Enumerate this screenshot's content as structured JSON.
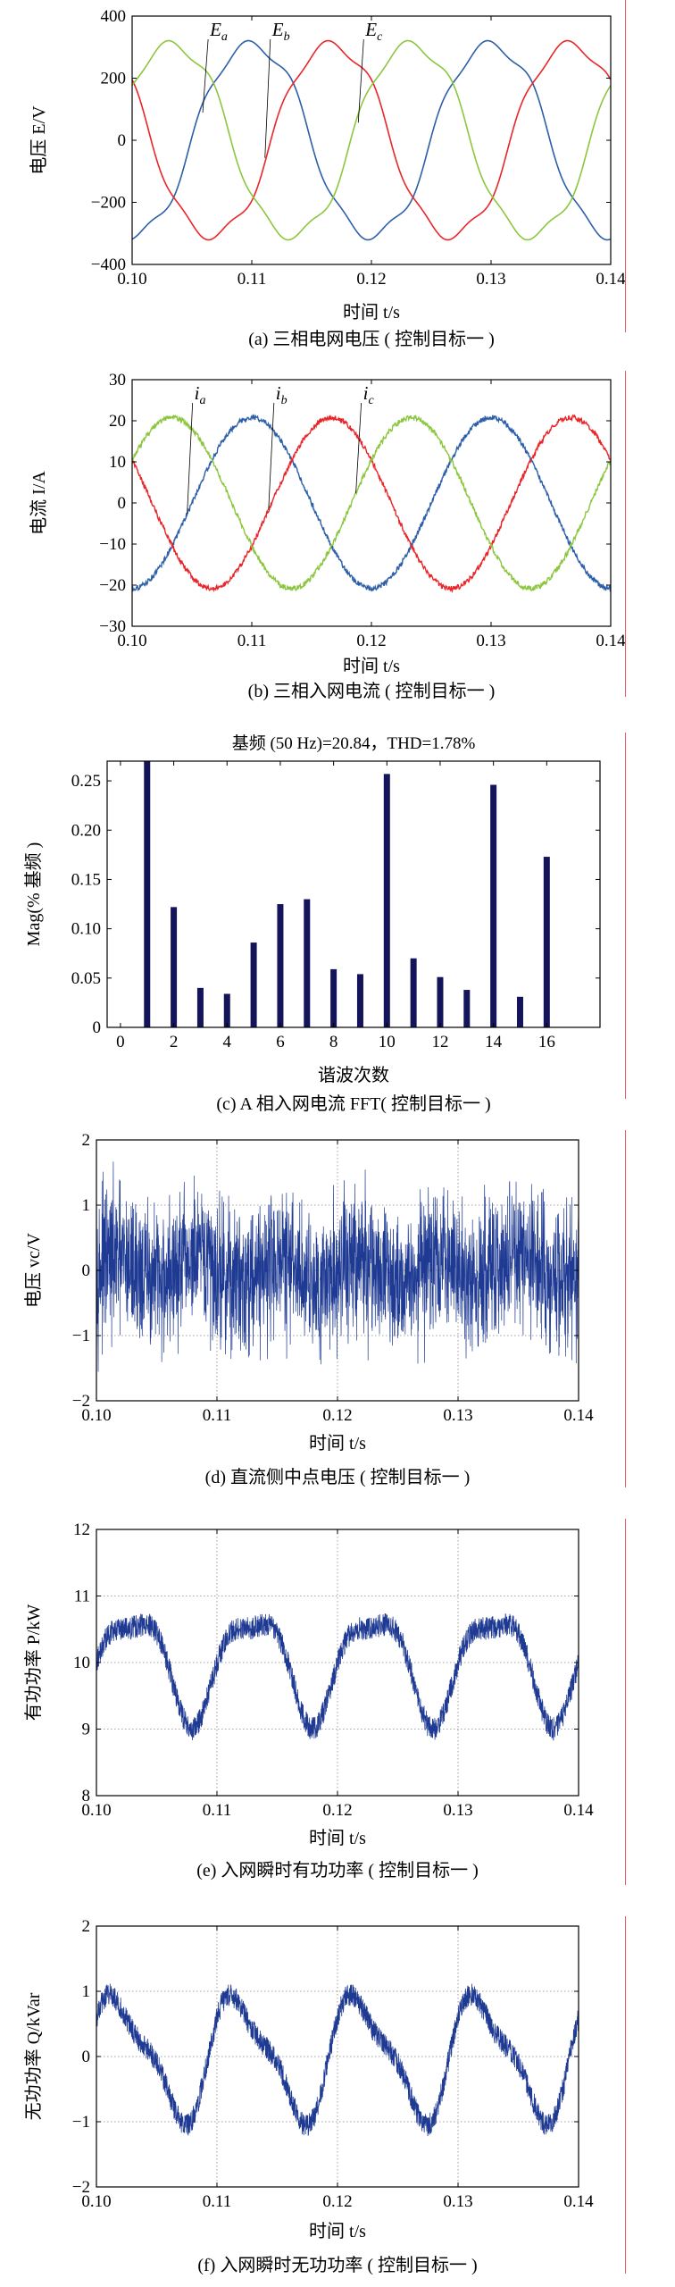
{
  "colors": {
    "red": "#e8262a",
    "blue": "#2c5fa8",
    "green": "#8cc63f",
    "dark_blue": "#1f3a93",
    "navy": "#14145a",
    "margin_line": "#e06060"
  },
  "chart_data": [
    {
      "id": "a",
      "type": "line",
      "caption": "(a) 三相电网电压 ( 控制目标一 )",
      "xlabel": "时间 t/s",
      "ylabel": "电压 E/V",
      "xlim": [
        0.1,
        0.14
      ],
      "ylim": [
        -400,
        400
      ],
      "xticks": [
        "0.10",
        "0.11",
        "0.12",
        "0.13",
        "0.14"
      ],
      "yticks": [
        "400",
        "200",
        "0",
        "−200",
        "−400"
      ],
      "grid": false,
      "amplitude": 320,
      "frequency_hz": 50,
      "series": [
        {
          "name": "Ea",
          "color": "#2c5fa8",
          "phase_deg": -90,
          "label_x": 0.1065
        },
        {
          "name": "Eb",
          "color": "#e8262a",
          "phase_deg": 150,
          "label_x": 0.1117
        },
        {
          "name": "Ec",
          "color": "#8cc63f",
          "phase_deg": 30,
          "label_x": 0.1195
        }
      ]
    },
    {
      "id": "b",
      "type": "line",
      "caption": "(b) 三相入网电流 ( 控制目标一 )",
      "xlabel": "时间 t/s",
      "ylabel": "电流 I/A",
      "xlim": [
        0.1,
        0.14
      ],
      "ylim": [
        -30,
        30
      ],
      "xticks": [
        "0.10",
        "0.11",
        "0.12",
        "0.13",
        "0.14"
      ],
      "yticks": [
        "30",
        "20",
        "10",
        "0",
        "−10",
        "−20",
        "−30"
      ],
      "grid": false,
      "amplitude": 20.8,
      "frequency_hz": 50,
      "series": [
        {
          "name": "ia",
          "color": "#2c5fa8",
          "phase_deg": -90,
          "label_x": 0.1052
        },
        {
          "name": "ib",
          "color": "#e8262a",
          "phase_deg": 150,
          "label_x": 0.112
        },
        {
          "name": "ic",
          "color": "#8cc63f",
          "phase_deg": 30,
          "label_x": 0.1193
        }
      ]
    },
    {
      "id": "c",
      "type": "bar",
      "title": "基频 (50 Hz)=20.84，THD=1.78%",
      "caption": "(c) A 相入网电流 FFT( 控制目标一 )",
      "xlabel": "谐波次数",
      "ylabel": "Mag(% 基频 )",
      "xlim": [
        -0.5,
        18
      ],
      "ylim": [
        0,
        0.27
      ],
      "xticks": [
        "0",
        "2",
        "4",
        "6",
        "8",
        "10",
        "12",
        "14",
        "16"
      ],
      "yticks": [
        "0.25",
        "0.20",
        "0.15",
        "0.10",
        "0.05",
        "0"
      ],
      "color": "#14145a",
      "categories": [
        0,
        1,
        2,
        3,
        4,
        5,
        6,
        7,
        8,
        9,
        10,
        11,
        12,
        13,
        14,
        15,
        16
      ],
      "values": [
        0,
        0.275,
        0.122,
        0.04,
        0.034,
        0.086,
        0.125,
        0.13,
        0.059,
        0.054,
        0.257,
        0.07,
        0.051,
        0.038,
        0.246,
        0.031,
        0.173
      ]
    },
    {
      "id": "d",
      "type": "line",
      "caption": "(d) 直流侧中点电压 ( 控制目标一 )",
      "xlabel": "时间 t/s",
      "ylabel": "电压 vc/V",
      "xlim": [
        0.1,
        0.14
      ],
      "ylim": [
        -2,
        2
      ],
      "xticks": [
        "0.10",
        "0.11",
        "0.12",
        "0.13",
        "0.14"
      ],
      "yticks": [
        "2",
        "1",
        "0",
        "−1",
        "−2"
      ],
      "grid": true,
      "color": "#1f3a93",
      "noise_amplitude": 1.2
    },
    {
      "id": "e",
      "type": "line",
      "caption": "(e) 入网瞬时有功功率 ( 控制目标一 )",
      "xlabel": "时间 t/s",
      "ylabel": "有功功率 P/kW",
      "xlim": [
        0.1,
        0.14
      ],
      "ylim": [
        8,
        12
      ],
      "xticks": [
        "0.10",
        "0.11",
        "0.12",
        "0.13",
        "0.14"
      ],
      "yticks": [
        "12",
        "11",
        "10",
        "9",
        "8"
      ],
      "grid": true,
      "color": "#1f3a93",
      "mean": 10.0,
      "ripple_frequency_hz": 100,
      "ripple_amplitude": 0.95
    },
    {
      "id": "f",
      "type": "line",
      "caption": "(f) 入网瞬时无功功率 ( 控制目标一 )",
      "xlabel": "时间 t/s",
      "ylabel": "无功功率 Q/kVar",
      "xlim": [
        0.1,
        0.14
      ],
      "ylim": [
        -2,
        2
      ],
      "xticks": [
        "0.10",
        "0.11",
        "0.12",
        "0.13",
        "0.14"
      ],
      "yticks": [
        "2",
        "1",
        "0",
        "−1",
        "−2"
      ],
      "grid": true,
      "color": "#1f3a93",
      "mean": 0.0,
      "ripple_frequency_hz": 100,
      "ripple_amplitude": 1.1
    }
  ]
}
